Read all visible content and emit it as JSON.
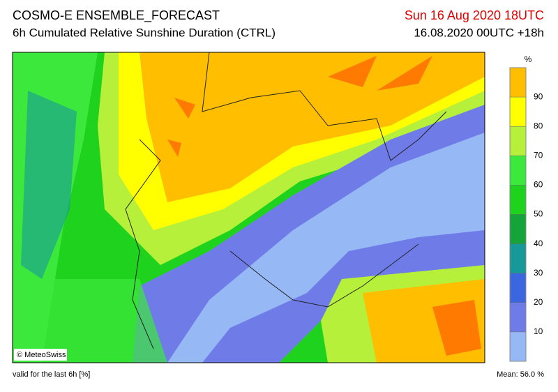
{
  "header": {
    "title": "COSMO-E ENSEMBLE_FORECAST",
    "subtitle": "6h Cumulated Relative Sunshine Duration (CTRL)",
    "valid_time": "Sun 16 Aug 2020 18UTC",
    "run_time": "16.08.2020 00UTC +18h"
  },
  "map": {
    "credit": "© MeteoSwiss"
  },
  "colorbar": {
    "unit": "%",
    "lim": [
      0,
      100
    ],
    "ticks": [
      10,
      20,
      30,
      40,
      50,
      60,
      70,
      80,
      90
    ],
    "colors": [
      "#96b8f4",
      "#6f7ce8",
      "#3b66e0",
      "#17999a",
      "#15a43a",
      "#1ed21e",
      "#3ce83c",
      "#b6f03a",
      "#ffff00",
      "#ffbe00",
      "#ff7a00"
    ]
  },
  "footer": {
    "validity": "valid for the last 6h [%]",
    "mean": "Mean:  56.0 %"
  }
}
